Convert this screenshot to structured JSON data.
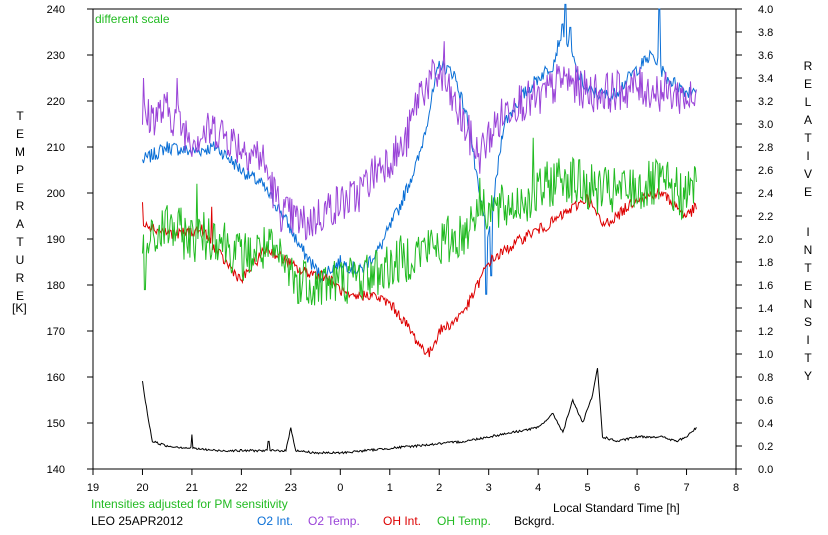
{
  "chart_data": {
    "type": "line",
    "annotation_top": "different scale",
    "annotation_bottom": "Intensities adjusted for PM sensitivity",
    "station_date": "LEO 25APR2012",
    "xlabel": "Local Standard Time [h]",
    "ylabel_left_letters": [
      "T",
      "E",
      "M",
      "P",
      "E",
      "R",
      "A",
      "T",
      "U",
      "R",
      "E"
    ],
    "ylabel_left_unit": "[K]",
    "ylabel_right_words": [
      [
        "R",
        "E",
        "L",
        "A",
        "T",
        "I",
        "V",
        "E"
      ],
      [
        "I",
        "N",
        "T",
        "E",
        "N",
        "S",
        "I",
        "T",
        "Y"
      ]
    ],
    "x_axis": {
      "min": 19,
      "max": 32,
      "ticks": [
        19,
        20,
        21,
        22,
        23,
        24,
        25,
        26,
        27,
        28,
        29,
        30,
        31,
        32
      ],
      "tick_labels": [
        "19",
        "20",
        "21",
        "22",
        "23",
        "0",
        "1",
        "2",
        "3",
        "4",
        "5",
        "6",
        "7",
        "8"
      ]
    },
    "y_left": {
      "min": 140,
      "max": 240,
      "ticks": [
        140,
        150,
        160,
        170,
        180,
        190,
        200,
        210,
        220,
        230,
        240
      ],
      "tick_labels": [
        "140",
        "150",
        "160",
        "170",
        "180",
        "190",
        "200",
        "210",
        "220",
        "230",
        "240"
      ]
    },
    "y_right": {
      "min": 0.0,
      "max": 4.0,
      "ticks": [
        0.0,
        0.2,
        0.4,
        0.6,
        0.8,
        1.0,
        1.2,
        1.4,
        1.6,
        1.8,
        2.0,
        2.2,
        2.4,
        2.6,
        2.8,
        3.0,
        3.2,
        3.4,
        3.6,
        3.8,
        4.0
      ],
      "tick_labels": [
        "0.0",
        "0.2",
        "0.4",
        "0.6",
        "0.8",
        "1.0",
        "1.2",
        "1.4",
        "1.6",
        "1.8",
        "2.0",
        "2.2",
        "2.4",
        "2.6",
        "2.8",
        "3.0",
        "3.2",
        "3.4",
        "3.6",
        "3.8",
        "4.0"
      ]
    },
    "series": [
      {
        "name": "O2 Int.",
        "color": "#0a6fd6",
        "axis": "left",
        "noise": 1.5,
        "points": [
          [
            20.0,
            207
          ],
          [
            20.5,
            210
          ],
          [
            21.0,
            209
          ],
          [
            21.5,
            210
          ],
          [
            22.0,
            205
          ],
          [
            22.4,
            202
          ],
          [
            22.8,
            196
          ],
          [
            23.2,
            188
          ],
          [
            23.6,
            182
          ],
          [
            24.0,
            185
          ],
          [
            24.4,
            183
          ],
          [
            24.8,
            188
          ],
          [
            25.2,
            197
          ],
          [
            25.6,
            208
          ],
          [
            25.8,
            218
          ],
          [
            26.0,
            228
          ],
          [
            26.3,
            226
          ],
          [
            26.6,
            215
          ],
          [
            26.8,
            200
          ],
          [
            27.0,
            190
          ],
          [
            27.3,
            215
          ],
          [
            27.6,
            220
          ],
          [
            28.0,
            225
          ],
          [
            28.3,
            228
          ],
          [
            28.5,
            236
          ],
          [
            28.8,
            226
          ],
          [
            29.0,
            222
          ],
          [
            29.5,
            221
          ],
          [
            30.0,
            227
          ],
          [
            30.3,
            230
          ],
          [
            30.6,
            225
          ],
          [
            31.0,
            222
          ],
          [
            31.2,
            223
          ]
        ]
      },
      {
        "name": "O2 Temp.",
        "color": "#9a44d8",
        "axis": "left",
        "noise": 4.5,
        "points": [
          [
            20.0,
            216
          ],
          [
            20.5,
            218
          ],
          [
            21.0,
            212
          ],
          [
            21.5,
            214
          ],
          [
            22.0,
            210
          ],
          [
            22.4,
            208
          ],
          [
            22.8,
            196
          ],
          [
            23.3,
            193
          ],
          [
            23.8,
            197
          ],
          [
            24.3,
            199
          ],
          [
            24.8,
            206
          ],
          [
            25.3,
            210
          ],
          [
            25.6,
            222
          ],
          [
            26.0,
            226
          ],
          [
            26.4,
            217
          ],
          [
            26.8,
            208
          ],
          [
            27.1,
            214
          ],
          [
            27.5,
            220
          ],
          [
            28.0,
            220
          ],
          [
            28.5,
            225
          ],
          [
            29.0,
            222
          ],
          [
            29.5,
            222
          ],
          [
            30.0,
            223
          ],
          [
            30.5,
            222
          ],
          [
            31.0,
            221
          ],
          [
            31.2,
            219
          ]
        ]
      },
      {
        "name": "OH Int.",
        "color": "#dd0000",
        "axis": "left",
        "noise": 1.2,
        "points": [
          [
            20.0,
            194
          ],
          [
            20.3,
            192
          ],
          [
            20.7,
            191
          ],
          [
            21.2,
            192
          ],
          [
            21.6,
            186
          ],
          [
            22.0,
            181
          ],
          [
            22.5,
            188
          ],
          [
            22.8,
            186
          ],
          [
            23.2,
            183
          ],
          [
            23.7,
            182
          ],
          [
            24.2,
            177
          ],
          [
            24.6,
            178
          ],
          [
            25.0,
            176
          ],
          [
            25.3,
            172
          ],
          [
            25.6,
            167
          ],
          [
            25.8,
            165
          ],
          [
            26.0,
            170
          ],
          [
            26.3,
            172
          ],
          [
            26.6,
            176
          ],
          [
            27.0,
            185
          ],
          [
            27.4,
            188
          ],
          [
            27.8,
            191
          ],
          [
            28.2,
            193
          ],
          [
            28.6,
            196
          ],
          [
            29.0,
            199
          ],
          [
            29.3,
            193
          ],
          [
            29.6,
            195
          ],
          [
            30.0,
            199
          ],
          [
            30.5,
            200
          ],
          [
            31.0,
            195
          ],
          [
            31.2,
            197
          ]
        ]
      },
      {
        "name": "OH Temp.",
        "color": "#22bb22",
        "axis": "left",
        "noise": 5.5,
        "points": [
          [
            20.0,
            187
          ],
          [
            20.5,
            193
          ],
          [
            21.0,
            190
          ],
          [
            21.5,
            191
          ],
          [
            22.0,
            186
          ],
          [
            22.5,
            188
          ],
          [
            23.0,
            183
          ],
          [
            23.5,
            180
          ],
          [
            24.0,
            181
          ],
          [
            24.5,
            182
          ],
          [
            25.0,
            184
          ],
          [
            25.5,
            187
          ],
          [
            26.0,
            189
          ],
          [
            26.5,
            191
          ],
          [
            26.8,
            198
          ],
          [
            27.2,
            196
          ],
          [
            27.6,
            198
          ],
          [
            28.0,
            200
          ],
          [
            28.5,
            204
          ],
          [
            29.0,
            201
          ],
          [
            29.5,
            200
          ],
          [
            30.0,
            201
          ],
          [
            30.5,
            202
          ],
          [
            31.0,
            199
          ],
          [
            31.2,
            203
          ]
        ]
      },
      {
        "name": "Bckgrd.",
        "color": "#000000",
        "axis": "left",
        "noise": 0.25,
        "points": [
          [
            20.0,
            159
          ],
          [
            20.1,
            152
          ],
          [
            20.2,
            146
          ],
          [
            20.5,
            145
          ],
          [
            21.0,
            144.5
          ],
          [
            21.5,
            144
          ],
          [
            22.0,
            144
          ],
          [
            22.5,
            144
          ],
          [
            22.9,
            144
          ],
          [
            23.0,
            149
          ],
          [
            23.1,
            144
          ],
          [
            23.5,
            143.5
          ],
          [
            24.0,
            143.5
          ],
          [
            24.5,
            144
          ],
          [
            25.0,
            144.5
          ],
          [
            25.5,
            145
          ],
          [
            26.0,
            145.5
          ],
          [
            26.5,
            146
          ],
          [
            27.0,
            147
          ],
          [
            27.5,
            148
          ],
          [
            28.0,
            149
          ],
          [
            28.3,
            152
          ],
          [
            28.5,
            148
          ],
          [
            28.7,
            155
          ],
          [
            28.9,
            150
          ],
          [
            29.1,
            156
          ],
          [
            29.2,
            162
          ],
          [
            29.3,
            147
          ],
          [
            29.6,
            146
          ],
          [
            30.0,
            147
          ],
          [
            30.5,
            147
          ],
          [
            30.8,
            146
          ],
          [
            31.0,
            147
          ],
          [
            31.2,
            149
          ]
        ]
      }
    ],
    "spikes": [
      {
        "series": "Bckgrd.",
        "at": [
          [
            21.0,
            147.5
          ],
          [
            22.55,
            146
          ],
          [
            23.0,
            149
          ]
        ]
      },
      {
        "series": "O2 Int.",
        "at": [
          [
            28.55,
            242
          ],
          [
            28.65,
            236
          ],
          [
            30.45,
            240
          ],
          [
            27.05,
            182
          ],
          [
            26.95,
            178
          ]
        ]
      },
      {
        "series": "O2 Temp.",
        "at": [
          [
            20.02,
            225
          ],
          [
            20.7,
            225
          ],
          [
            26.1,
            233
          ]
        ]
      },
      {
        "series": "OH Temp.",
        "at": [
          [
            20.05,
            179
          ],
          [
            21.1,
            202
          ],
          [
            23.15,
            176
          ],
          [
            27.9,
            212
          ]
        ]
      },
      {
        "series": "OH Int.",
        "at": [
          [
            20.0,
            198
          ],
          [
            21.4,
            197
          ]
        ]
      }
    ]
  }
}
